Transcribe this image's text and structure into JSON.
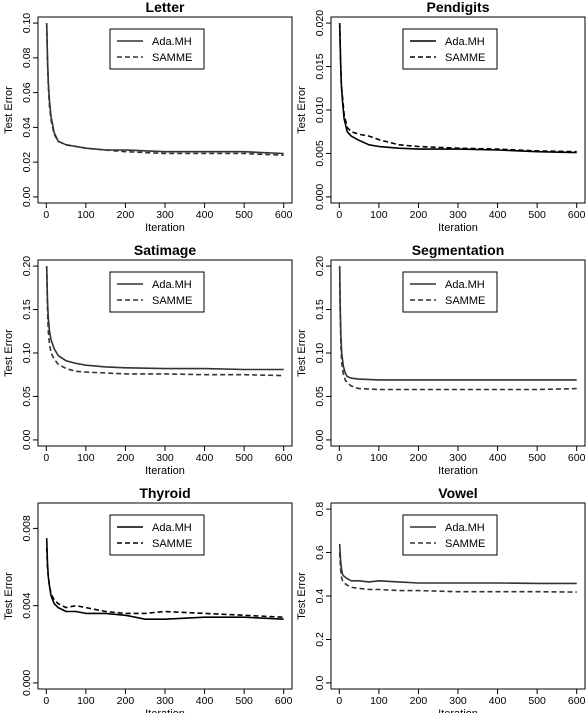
{
  "chart_data": [
    {
      "type": "line",
      "title": "Letter",
      "xlabel": "Iteration",
      "ylabel": "Test Error",
      "xlim": [
        0,
        600
      ],
      "ylim": [
        0,
        0.1
      ],
      "xticks": [
        "0",
        "100",
        "200",
        "300",
        "400",
        "500",
        "600"
      ],
      "yticks": [
        "0.00",
        "0.02",
        "0.04",
        "0.06",
        "0.08",
        "0.10"
      ],
      "legend_position": "top-center",
      "series": [
        {
          "name": "Ada.MH",
          "style": "solid",
          "color": "#333333",
          "x": [
            1,
            3,
            5,
            8,
            12,
            20,
            30,
            50,
            75,
            100,
            150,
            200,
            300,
            400,
            500,
            600
          ],
          "y": [
            0.1,
            0.08,
            0.066,
            0.055,
            0.046,
            0.037,
            0.032,
            0.03,
            0.029,
            0.028,
            0.027,
            0.027,
            0.026,
            0.026,
            0.026,
            0.025
          ]
        },
        {
          "name": "SAMME",
          "style": "dashed",
          "color": "#333333",
          "x": [
            1,
            3,
            5,
            8,
            12,
            20,
            30,
            50,
            75,
            100,
            150,
            200,
            300,
            400,
            500,
            600
          ],
          "y": [
            0.1,
            0.078,
            0.064,
            0.052,
            0.044,
            0.036,
            0.032,
            0.03,
            0.029,
            0.028,
            0.027,
            0.026,
            0.025,
            0.025,
            0.025,
            0.024
          ]
        }
      ]
    },
    {
      "type": "line",
      "title": "Pendigits",
      "xlabel": "Iteration",
      "ylabel": "Test Error",
      "xlim": [
        0,
        600
      ],
      "ylim": [
        0,
        0.02
      ],
      "xticks": [
        "0",
        "100",
        "200",
        "300",
        "400",
        "500",
        "600"
      ],
      "yticks": [
        "0.000",
        "0.005",
        "0.010",
        "0.015",
        "0.020"
      ],
      "legend_position": "top-center",
      "series": [
        {
          "name": "Ada.MH",
          "style": "solid",
          "color": "#000000",
          "x": [
            1,
            3,
            5,
            8,
            12,
            20,
            30,
            50,
            75,
            100,
            150,
            200,
            300,
            400,
            500,
            600
          ],
          "y": [
            0.02,
            0.016,
            0.013,
            0.011,
            0.009,
            0.0075,
            0.007,
            0.0065,
            0.006,
            0.0058,
            0.0056,
            0.0055,
            0.0055,
            0.0054,
            0.0052,
            0.0051
          ]
        },
        {
          "name": "SAMME",
          "style": "dashed",
          "color": "#000000",
          "x": [
            1,
            3,
            5,
            8,
            12,
            20,
            30,
            50,
            75,
            100,
            150,
            200,
            300,
            400,
            500,
            600
          ],
          "y": [
            0.02,
            0.016,
            0.013,
            0.0115,
            0.0095,
            0.008,
            0.0075,
            0.0072,
            0.007,
            0.0066,
            0.006,
            0.0058,
            0.0056,
            0.0055,
            0.0053,
            0.0052
          ]
        }
      ]
    },
    {
      "type": "line",
      "title": "Satimage",
      "xlabel": "Iteration",
      "ylabel": "Test Error",
      "xlim": [
        0,
        600
      ],
      "ylim": [
        0,
        0.2
      ],
      "xticks": [
        "0",
        "100",
        "200",
        "300",
        "400",
        "500",
        "600"
      ],
      "yticks": [
        "0.00",
        "0.05",
        "0.10",
        "0.15",
        "0.20"
      ],
      "legend_position": "top-center",
      "series": [
        {
          "name": "Ada.MH",
          "style": "solid",
          "color": "#333333",
          "x": [
            1,
            3,
            5,
            8,
            12,
            20,
            30,
            50,
            75,
            100,
            150,
            200,
            300,
            400,
            500,
            600
          ],
          "y": [
            0.2,
            0.16,
            0.14,
            0.125,
            0.115,
            0.105,
            0.097,
            0.091,
            0.088,
            0.086,
            0.084,
            0.083,
            0.082,
            0.082,
            0.081,
            0.081
          ]
        },
        {
          "name": "SAMME",
          "style": "dashed",
          "color": "#333333",
          "x": [
            1,
            3,
            5,
            8,
            12,
            20,
            30,
            50,
            75,
            100,
            150,
            200,
            300,
            400,
            500,
            600
          ],
          "y": [
            0.2,
            0.15,
            0.125,
            0.11,
            0.1,
            0.093,
            0.087,
            0.082,
            0.079,
            0.078,
            0.077,
            0.076,
            0.076,
            0.075,
            0.075,
            0.074
          ]
        }
      ]
    },
    {
      "type": "line",
      "title": "Segmentation",
      "xlabel": "Iteration",
      "ylabel": "Test Error",
      "xlim": [
        0,
        600
      ],
      "ylim": [
        0,
        0.2
      ],
      "xticks": [
        "0",
        "100",
        "200",
        "300",
        "400",
        "500",
        "600"
      ],
      "yticks": [
        "0.00",
        "0.05",
        "0.10",
        "0.15",
        "0.20"
      ],
      "legend_position": "top-center",
      "series": [
        {
          "name": "Ada.MH",
          "style": "solid",
          "color": "#333333",
          "x": [
            1,
            2,
            4,
            6,
            10,
            15,
            20,
            30,
            50,
            100,
            150,
            200,
            300,
            400,
            500,
            600
          ],
          "y": [
            0.2,
            0.16,
            0.12,
            0.1,
            0.085,
            0.077,
            0.073,
            0.071,
            0.07,
            0.069,
            0.069,
            0.069,
            0.069,
            0.069,
            0.069,
            0.069
          ]
        },
        {
          "name": "SAMME",
          "style": "dashed",
          "color": "#333333",
          "x": [
            1,
            2,
            4,
            6,
            10,
            15,
            20,
            30,
            50,
            100,
            150,
            200,
            300,
            400,
            500,
            600
          ],
          "y": [
            0.2,
            0.15,
            0.11,
            0.09,
            0.076,
            0.069,
            0.066,
            0.062,
            0.059,
            0.058,
            0.058,
            0.058,
            0.058,
            0.058,
            0.058,
            0.059
          ]
        }
      ]
    },
    {
      "type": "line",
      "title": "Thyroid",
      "xlabel": "Iteration",
      "ylabel": "Test Error",
      "xlim": [
        0,
        600
      ],
      "ylim": [
        0,
        0.009
      ],
      "xticks": [
        "0",
        "100",
        "200",
        "300",
        "400",
        "500",
        "600"
      ],
      "yticks": [
        "0.000",
        "0.004",
        "0.008"
      ],
      "legend_position": "top-center",
      "series": [
        {
          "name": "Ada.MH",
          "style": "solid",
          "color": "#000000",
          "x": [
            1,
            3,
            5,
            8,
            12,
            20,
            30,
            50,
            75,
            100,
            150,
            200,
            250,
            300,
            400,
            500,
            600
          ],
          "y": [
            0.0075,
            0.0062,
            0.0055,
            0.005,
            0.0045,
            0.0041,
            0.0039,
            0.0037,
            0.0037,
            0.0036,
            0.0036,
            0.0035,
            0.0033,
            0.0033,
            0.0034,
            0.0034,
            0.0033
          ]
        },
        {
          "name": "SAMME",
          "style": "dashed",
          "color": "#000000",
          "x": [
            1,
            3,
            5,
            8,
            12,
            20,
            30,
            50,
            75,
            100,
            150,
            200,
            250,
            300,
            400,
            500,
            600
          ],
          "y": [
            0.007,
            0.006,
            0.0055,
            0.005,
            0.0046,
            0.0043,
            0.0041,
            0.0039,
            0.004,
            0.0039,
            0.0037,
            0.0036,
            0.0036,
            0.0037,
            0.0036,
            0.0035,
            0.0034
          ]
        }
      ]
    },
    {
      "type": "line",
      "title": "Vowel",
      "xlabel": "Iteration",
      "ylabel": "Test Error",
      "xlim": [
        0,
        600
      ],
      "ylim": [
        0,
        0.8
      ],
      "xticks": [
        "0",
        "100",
        "200",
        "300",
        "400",
        "500",
        "600"
      ],
      "yticks": [
        "0.0",
        "0.2",
        "0.4",
        "0.6",
        "0.8"
      ],
      "legend_position": "top-center",
      "series": [
        {
          "name": "Ada.MH",
          "style": "solid",
          "color": "#333333",
          "x": [
            1,
            3,
            5,
            8,
            12,
            20,
            30,
            50,
            75,
            100,
            150,
            200,
            300,
            400,
            500,
            600
          ],
          "y": [
            0.64,
            0.57,
            0.53,
            0.5,
            0.49,
            0.48,
            0.47,
            0.47,
            0.465,
            0.47,
            0.465,
            0.46,
            0.46,
            0.46,
            0.458,
            0.458
          ]
        },
        {
          "name": "SAMME",
          "style": "dashed",
          "color": "#333333",
          "x": [
            1,
            3,
            5,
            8,
            12,
            20,
            30,
            50,
            75,
            100,
            150,
            200,
            300,
            400,
            500,
            600
          ],
          "y": [
            0.6,
            0.53,
            0.49,
            0.47,
            0.46,
            0.45,
            0.44,
            0.435,
            0.43,
            0.43,
            0.425,
            0.425,
            0.42,
            0.42,
            0.42,
            0.418
          ]
        }
      ]
    }
  ]
}
